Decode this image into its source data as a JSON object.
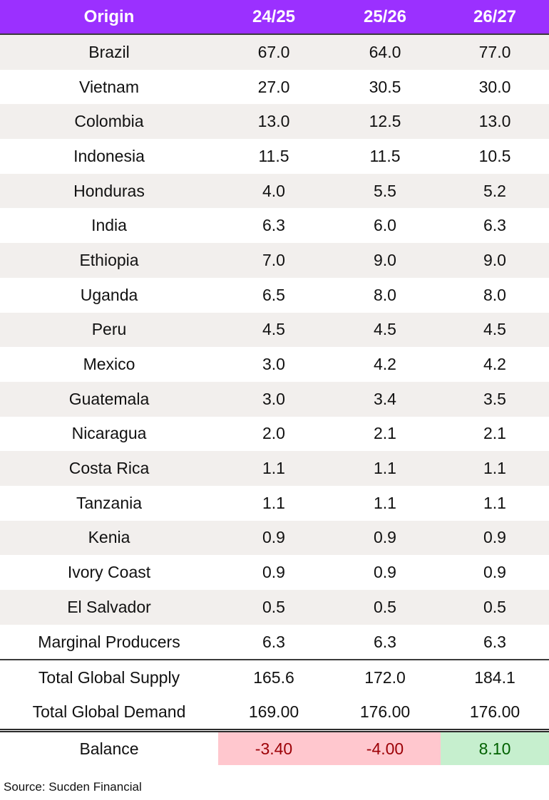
{
  "chart_data": {
    "type": "table",
    "columns": [
      "Origin",
      "24/25",
      "25/26",
      "26/27"
    ],
    "rows": [
      [
        "Brazil",
        "67.0",
        "64.0",
        "77.0"
      ],
      [
        "Vietnam",
        "27.0",
        "30.5",
        "30.0"
      ],
      [
        "Colombia",
        "13.0",
        "12.5",
        "13.0"
      ],
      [
        "Indonesia",
        "11.5",
        "11.5",
        "10.5"
      ],
      [
        "Honduras",
        "4.0",
        "5.5",
        "5.2"
      ],
      [
        "India",
        "6.3",
        "6.0",
        "6.3"
      ],
      [
        "Ethiopia",
        "7.0",
        "9.0",
        "9.0"
      ],
      [
        "Uganda",
        "6.5",
        "8.0",
        "8.0"
      ],
      [
        "Peru",
        "4.5",
        "4.5",
        "4.5"
      ],
      [
        "Mexico",
        "3.0",
        "4.2",
        "4.2"
      ],
      [
        "Guatemala",
        "3.0",
        "3.4",
        "3.5"
      ],
      [
        "Nicaragua",
        "2.0",
        "2.1",
        "2.1"
      ],
      [
        "Costa Rica",
        "1.1",
        "1.1",
        "1.1"
      ],
      [
        "Tanzania",
        "1.1",
        "1.1",
        "1.1"
      ],
      [
        "Kenia",
        "0.9",
        "0.9",
        "0.9"
      ],
      [
        "Ivory Coast",
        "0.9",
        "0.9",
        "0.9"
      ],
      [
        "El Salvador",
        "0.5",
        "0.5",
        "0.5"
      ],
      [
        "Marginal Producers",
        "6.3",
        "6.3",
        "6.3"
      ]
    ],
    "totals": [
      [
        "Total Global Supply",
        "165.6",
        "172.0",
        "184.1"
      ],
      [
        "Total Global Demand",
        "169.00",
        "176.00",
        "176.00"
      ]
    ],
    "balance": {
      "label": "Balance",
      "values": [
        "-3.40",
        "-4.00",
        "8.10"
      ]
    }
  },
  "colors": {
    "header_bg": "#9b30ff",
    "negative_bg": "#ffc7ce",
    "negative_text": "#9c0006",
    "positive_bg": "#c6efce",
    "positive_text": "#006100"
  },
  "source": "Source: Sucden Financial"
}
